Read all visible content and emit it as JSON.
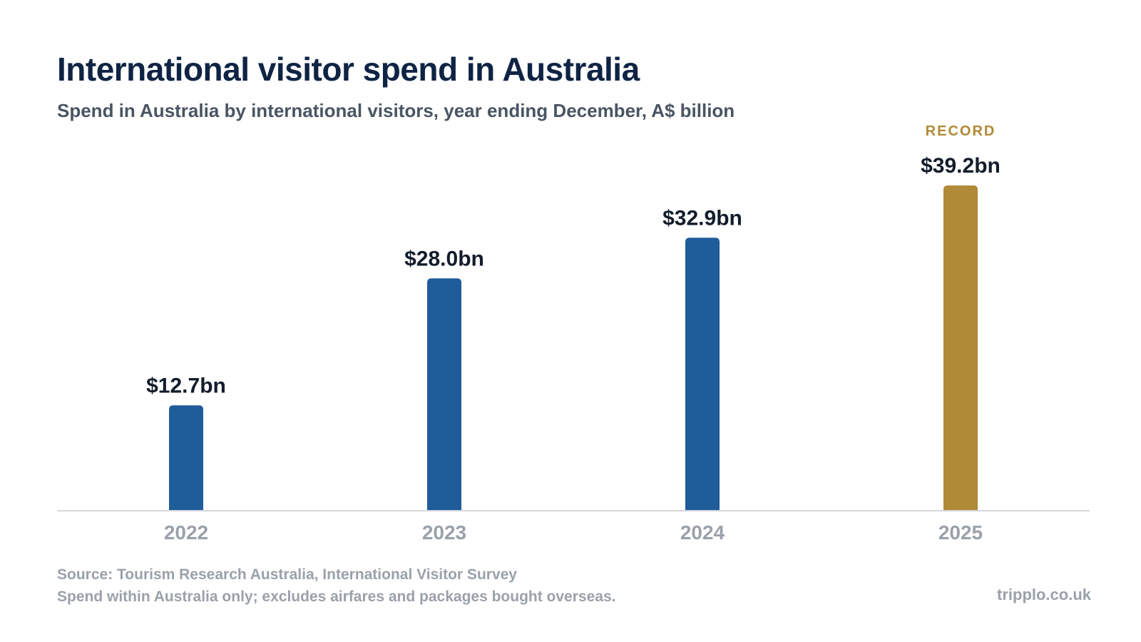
{
  "header": {
    "title": "International visitor spend in Australia",
    "subtitle": "Spend in Australia by international visitors, year ending December, A$ billion"
  },
  "chart_data": {
    "type": "bar",
    "title": "International visitor spend in Australia",
    "subtitle": "Spend in Australia by international visitors, year ending December, A$ billion",
    "categories": [
      "2022",
      "2023",
      "2024",
      "2025"
    ],
    "values": [
      12.7,
      28.0,
      32.9,
      39.2
    ],
    "data_labels": [
      "$12.7bn",
      "$28.0bn",
      "$32.9bn",
      "$39.2bn"
    ],
    "annotations": [
      {
        "category": "2025",
        "text": "RECORD"
      }
    ],
    "ylim": [
      0,
      45
    ],
    "grid": false,
    "colors": {
      "default": "#1f5c9a",
      "highlight": "#b08a36",
      "highlight_category": "2025"
    }
  },
  "footer": {
    "source": "Source: Tourism Research Australia, International Visitor Survey",
    "note": "Spend within Australia only; excludes airfares and packages bought overseas.",
    "brand": "tripplo.co.uk"
  }
}
